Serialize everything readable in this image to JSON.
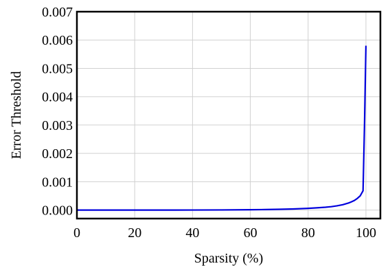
{
  "chart_data": {
    "type": "line",
    "xlabel": "Sparsity (%)",
    "ylabel": "Error Threshold",
    "xlim": [
      0,
      105
    ],
    "ylim": [
      -0.0003,
      0.007
    ],
    "xticks": [
      0,
      20,
      40,
      60,
      80,
      100
    ],
    "xtick_labels": [
      "0",
      "20",
      "40",
      "60",
      "80",
      "100"
    ],
    "yticks": [
      0.0,
      0.001,
      0.002,
      0.003,
      0.004,
      0.005,
      0.006,
      0.007
    ],
    "ytick_labels": [
      "0.000",
      "0.001",
      "0.002",
      "0.003",
      "0.004",
      "0.005",
      "0.006",
      "0.007"
    ],
    "grid": true,
    "colors": {
      "line": "#0000dd"
    },
    "series": [
      {
        "x": [
          0,
          10,
          20,
          30,
          40,
          50,
          60,
          65,
          70,
          75,
          80,
          83,
          86,
          88,
          90,
          92,
          94,
          95,
          96,
          97,
          98,
          99,
          99.5,
          100
        ],
        "y": [
          0.0,
          0.0,
          0.0,
          0.0,
          2e-06,
          5e-06,
          1.2e-05,
          1.8e-05,
          2.7e-05,
          4e-05,
          6e-05,
          7.8e-05,
          0.0001,
          0.00012,
          0.00015,
          0.00019,
          0.00025,
          0.00029,
          0.00034,
          0.00041,
          0.0005,
          0.00068,
          0.003,
          0.0058
        ]
      }
    ]
  }
}
